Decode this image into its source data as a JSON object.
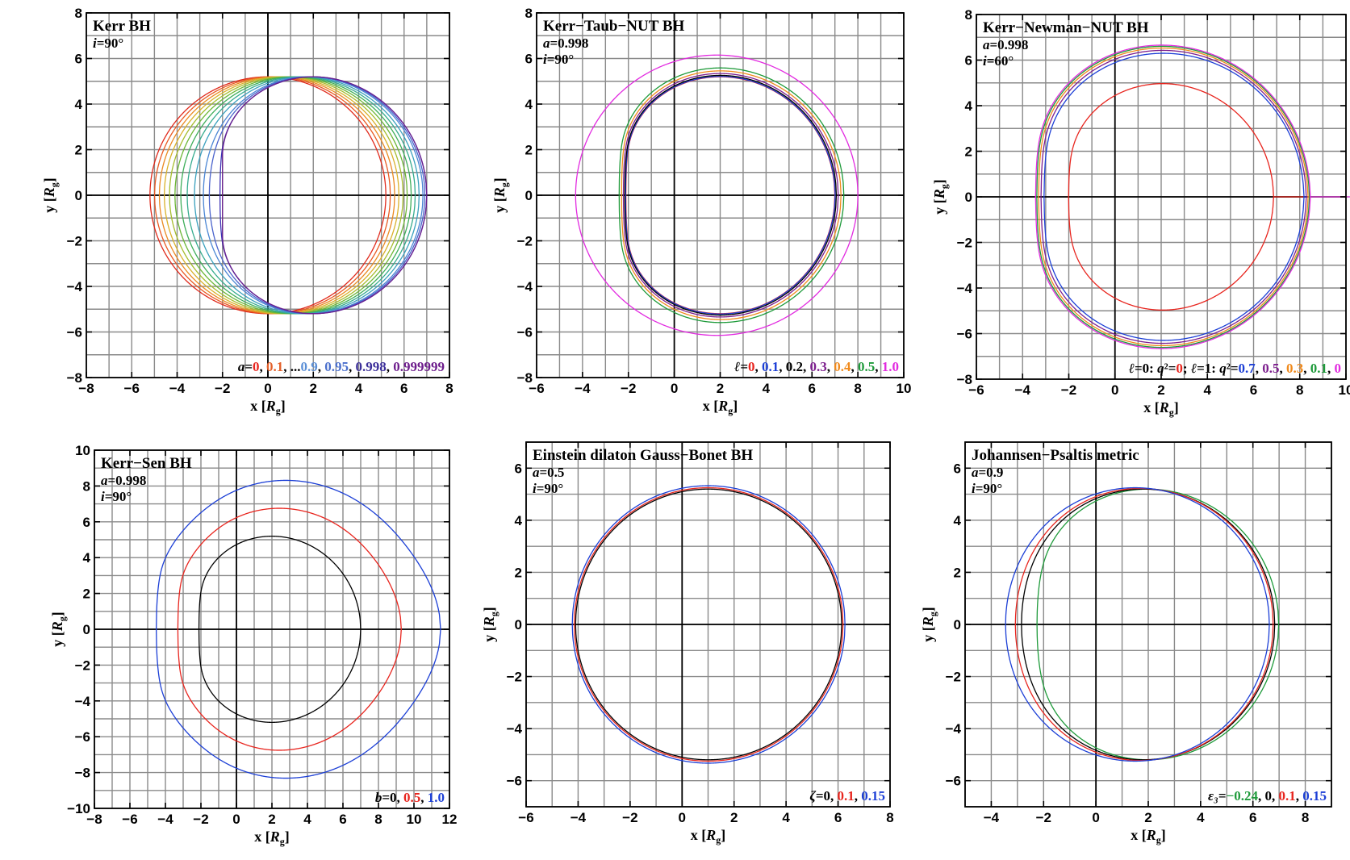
{
  "figure": {
    "axis_label_x_parts": [
      "x [",
      "R",
      "g",
      "]"
    ],
    "axis_label_y_parts": [
      "y [",
      "R",
      "g",
      "]"
    ]
  },
  "chart_data": [
    {
      "type": "line",
      "title": "Kerr BH",
      "info": [
        {
          "var": "i",
          "text": "=90°"
        }
      ],
      "xlim": [
        -8,
        8
      ],
      "ylim": [
        -8,
        8
      ],
      "x_ticks": [
        -8,
        -6,
        -4,
        -2,
        0,
        2,
        4,
        6,
        8
      ],
      "y_ticks": [
        -8,
        -6,
        -4,
        -2,
        0,
        2,
        4,
        6,
        8
      ],
      "x_tick_labels": [
        "−8",
        "−6",
        "−4",
        "−2",
        "0",
        "2",
        "4",
        "6",
        "8"
      ],
      "y_tick_labels": [
        "−8",
        "−6",
        "−4",
        "−2",
        "0",
        "2",
        "4",
        "6",
        "8"
      ],
      "grid": true,
      "legend_location": "bottom-right",
      "legend": {
        "prefix_var": "a",
        "prefix_eq": "=",
        "items": [
          {
            "text": "0",
            "color": "#e8251e"
          },
          {
            "text": ", ",
            "color": "#000000"
          },
          {
            "text": "0.1",
            "color": "#e3602a"
          },
          {
            "text": ", ...",
            "color": "#000000"
          },
          {
            "text": "0.9",
            "color": "#5b8fd6"
          },
          {
            "text": ", ",
            "color": "#000000"
          },
          {
            "text": "0.95",
            "color": "#4a6fcc"
          },
          {
            "text": ", ",
            "color": "#000000"
          },
          {
            "text": "0.998",
            "color": "#3c2f9a"
          },
          {
            "text": ", ",
            "color": "#000000"
          },
          {
            "text": "0.999999",
            "color": "#6d1d8c"
          }
        ]
      },
      "series": [
        {
          "kind": "shadow",
          "a": 0.0,
          "color": "#e02a1c"
        },
        {
          "kind": "shadow",
          "a": 0.1,
          "color": "#e95a22"
        },
        {
          "kind": "shadow",
          "a": 0.2,
          "color": "#ea8a22"
        },
        {
          "kind": "shadow",
          "a": 0.3,
          "color": "#d9b12b"
        },
        {
          "kind": "shadow",
          "a": 0.4,
          "color": "#a6bc2e"
        },
        {
          "kind": "shadow",
          "a": 0.5,
          "color": "#6cb636"
        },
        {
          "kind": "shadow",
          "a": 0.6,
          "color": "#3fae5a"
        },
        {
          "kind": "shadow",
          "a": 0.7,
          "color": "#36ab8e"
        },
        {
          "kind": "shadow",
          "a": 0.8,
          "color": "#3aa0bd"
        },
        {
          "kind": "shadow",
          "a": 0.9,
          "color": "#4b86d4"
        },
        {
          "kind": "shadow",
          "a": 0.95,
          "color": "#4a63cc"
        },
        {
          "kind": "shadow",
          "a": 0.998,
          "color": "#3a2fb4"
        },
        {
          "kind": "shadow",
          "a": 0.999999,
          "color": "#6a1f8e"
        }
      ]
    },
    {
      "type": "line",
      "title": "Kerr−Taub−NUT BH",
      "info": [
        {
          "var": "a",
          "text": "=0.998"
        },
        {
          "var": "i",
          "text": "=90°"
        }
      ],
      "xlim": [
        -6,
        10
      ],
      "ylim": [
        -8,
        8
      ],
      "x_ticks": [
        -6,
        -4,
        -2,
        0,
        2,
        4,
        6,
        8,
        10
      ],
      "y_ticks": [
        -8,
        -6,
        -4,
        -2,
        0,
        2,
        4,
        6,
        8
      ],
      "x_tick_labels": [
        "−6",
        "−4",
        "−2",
        "0",
        "2",
        "4",
        "6",
        "8",
        "10"
      ],
      "y_tick_labels": [
        "−8",
        "−6",
        "−4",
        "−2",
        "0",
        "2",
        "4",
        "6",
        "8"
      ],
      "grid": true,
      "legend_location": "bottom-right",
      "legend": {
        "prefix_var": "ℓ",
        "prefix_eq": "=",
        "items": [
          {
            "text": "0",
            "color": "#e8251e"
          },
          {
            "text": ", ",
            "color": "#000000"
          },
          {
            "text": "0.1",
            "color": "#1c3fd6"
          },
          {
            "text": ", ",
            "color": "#000000"
          },
          {
            "text": "0.2",
            "color": "#000000"
          },
          {
            "text": ", ",
            "color": "#000000"
          },
          {
            "text": "0.3",
            "color": "#7d1f8e"
          },
          {
            "text": ", ",
            "color": "#000000"
          },
          {
            "text": "0.4",
            "color": "#f08a1c"
          },
          {
            "text": ", ",
            "color": "#000000"
          },
          {
            "text": "0.5",
            "color": "#1e9a3a"
          },
          {
            "text": ", ",
            "color": "#000000"
          },
          {
            "text": "1.0",
            "color": "#e22be0"
          }
        ]
      },
      "series": [
        {
          "kind": "shadow",
          "a": 0.998,
          "color": "#e8251e",
          "scale": 1.0,
          "dx": 0.0
        },
        {
          "kind": "shadow",
          "a": 0.998,
          "color": "#1c3fd6",
          "scale": 1.003,
          "dx": 0.0
        },
        {
          "kind": "shadow",
          "a": 0.998,
          "color": "#000000",
          "scale": 1.012,
          "dx": 0.01
        },
        {
          "kind": "shadow",
          "a": 0.998,
          "color": "#7d1f8e",
          "scale": 1.028,
          "dx": 0.02
        },
        {
          "kind": "shadow",
          "a": 0.998,
          "color": "#f08a1c",
          "scale": 1.05,
          "dx": 0.04
        },
        {
          "kind": "shadow",
          "a": 0.998,
          "color": "#1e9a3a",
          "scale": 1.075,
          "dx": 0.05
        },
        {
          "kind": "ellipse",
          "cx": 1.85,
          "cy": 0.0,
          "r": 6.15,
          "color": "#e22be0"
        }
      ]
    },
    {
      "type": "line",
      "title": "Kerr−Newman−NUT BH",
      "info": [
        {
          "var": "a",
          "text": "=0.998"
        },
        {
          "var": "i",
          "text": "=60°"
        }
      ],
      "xlim": [
        -6,
        10
      ],
      "ylim": [
        -8,
        8
      ],
      "x_ticks": [
        -6,
        -4,
        -2,
        0,
        2,
        4,
        6,
        8,
        10
      ],
      "y_ticks": [
        -8,
        -6,
        -4,
        -2,
        0,
        2,
        4,
        6,
        8
      ],
      "x_tick_labels": [
        "−6",
        "−4",
        "−2",
        "0",
        "2",
        "4",
        "6",
        "8",
        "10"
      ],
      "y_tick_labels": [
        "−8",
        "−6",
        "−4",
        "−2",
        "0",
        "2",
        "4",
        "6",
        "8"
      ],
      "grid": true,
      "legend_location": "bottom-right",
      "legend": {
        "prefix_var": "",
        "prefix_eq": "",
        "items": [
          {
            "text": "ℓ",
            "color": "#000000",
            "italic": true
          },
          {
            "text": "=0:  ",
            "color": "#000000"
          },
          {
            "text": "q",
            "color": "#000000",
            "italic": true
          },
          {
            "text": "²",
            "color": "#000000"
          },
          {
            "text": "=",
            "color": "#000000"
          },
          {
            "text": "0",
            "color": "#e8251e"
          },
          {
            "text": ";    ",
            "color": "#000000"
          },
          {
            "text": "ℓ",
            "color": "#000000",
            "italic": true
          },
          {
            "text": "=1:  ",
            "color": "#000000"
          },
          {
            "text": "q",
            "color": "#000000",
            "italic": true
          },
          {
            "text": "²",
            "color": "#000000"
          },
          {
            "text": "=",
            "color": "#000000"
          },
          {
            "text": "0.7",
            "color": "#1c3fd6"
          },
          {
            "text": ", ",
            "color": "#000000"
          },
          {
            "text": "0.5",
            "color": "#7d1f8e"
          },
          {
            "text": ", ",
            "color": "#000000"
          },
          {
            "text": "0.3",
            "color": "#f08a1c"
          },
          {
            "text": ", ",
            "color": "#000000"
          },
          {
            "text": "0.1",
            "color": "#1e9a3a"
          },
          {
            "text": ", ",
            "color": "#000000"
          },
          {
            "text": "0",
            "color": "#e22be0"
          }
        ]
      },
      "series": [
        {
          "kind": "shadow",
          "a": 0.998,
          "incl": 60,
          "color": "#e8251e",
          "scale": 0.97,
          "dx": 0.25
        },
        {
          "kind": "shadow",
          "a": 0.998,
          "incl": 60,
          "color": "#1c3fd6",
          "scale": 1.23,
          "dx": 0.55
        },
        {
          "kind": "shadow",
          "a": 0.998,
          "incl": 60,
          "color": "#7d1f8e",
          "scale": 1.255,
          "dx": 0.55
        },
        {
          "kind": "shadow",
          "a": 0.998,
          "incl": 60,
          "color": "#f08a1c",
          "scale": 1.275,
          "dx": 0.55
        },
        {
          "kind": "shadow",
          "a": 0.998,
          "incl": 60,
          "color": "#1e9a3a",
          "scale": 1.29,
          "dx": 0.55
        },
        {
          "kind": "shadow",
          "a": 0.998,
          "incl": 60,
          "color": "#e22be0",
          "scale": 1.3,
          "dx": 0.55
        }
      ]
    },
    {
      "type": "line",
      "title": "Kerr−Sen BH",
      "info": [
        {
          "var": "a",
          "text": "=0.998"
        },
        {
          "var": "i",
          "text": "=90°"
        }
      ],
      "xlim": [
        -8,
        12
      ],
      "ylim": [
        -10,
        10
      ],
      "x_ticks": [
        -8,
        -6,
        -4,
        -2,
        0,
        2,
        4,
        6,
        8,
        10,
        12
      ],
      "y_ticks": [
        -10,
        -8,
        -6,
        -4,
        -2,
        0,
        2,
        4,
        6,
        8,
        10
      ],
      "x_tick_labels": [
        "−8",
        "−6",
        "−4",
        "−2",
        "0",
        "2",
        "4",
        "6",
        "8",
        "10",
        "12"
      ],
      "y_tick_labels": [
        "−10",
        "−8",
        "−6",
        "−4",
        "−2",
        "0",
        "2",
        "4",
        "6",
        "8",
        "10"
      ],
      "grid": true,
      "legend_location": "bottom-right",
      "legend": {
        "prefix_var": "b",
        "prefix_eq": "=",
        "items": [
          {
            "text": "0",
            "color": "#000000"
          },
          {
            "text": ", ",
            "color": "#000000"
          },
          {
            "text": "0.5",
            "color": "#e8251e"
          },
          {
            "text": ", ",
            "color": "#000000"
          },
          {
            "text": "1.0",
            "color": "#1c3fd6"
          }
        ]
      },
      "series": [
        {
          "kind": "shadow",
          "a": 0.998,
          "color": "#000000",
          "scale": 1.0,
          "dx": 0.0
        },
        {
          "kind": "shadow",
          "a": 0.998,
          "color": "#e8251e",
          "scale": 1.3,
          "dx": 0.55,
          "flat": 0.35
        },
        {
          "kind": "shadow",
          "a": 0.998,
          "color": "#1c3fd6",
          "scale": 1.6,
          "dx": 1.05,
          "flat": 0.55
        }
      ]
    },
    {
      "type": "line",
      "title": "Einstein dilaton Gauss−Bonet BH",
      "info": [
        {
          "var": "a",
          "text": "=0.5"
        },
        {
          "var": "i",
          "text": "=90°"
        }
      ],
      "xlim": [
        -6,
        8
      ],
      "ylim": [
        -7,
        7
      ],
      "x_ticks": [
        -6,
        -4,
        -2,
        0,
        2,
        4,
        6,
        8
      ],
      "y_ticks": [
        -6,
        -4,
        -2,
        0,
        2,
        4,
        6
      ],
      "x_tick_labels": [
        "−6",
        "−4",
        "−2",
        "0",
        "2",
        "4",
        "6",
        "8"
      ],
      "y_tick_labels": [
        "−6",
        "−4",
        "−2",
        "0",
        "2",
        "4",
        "6"
      ],
      "grid": true,
      "legend_location": "bottom-right",
      "legend": {
        "prefix_var": "ζ",
        "prefix_eq": "=",
        "items": [
          {
            "text": "0",
            "color": "#000000"
          },
          {
            "text": ", ",
            "color": "#000000"
          },
          {
            "text": "0.1",
            "color": "#e8251e"
          },
          {
            "text": ", ",
            "color": "#000000"
          },
          {
            "text": "0.15",
            "color": "#1c3fd6"
          }
        ]
      },
      "series": [
        {
          "kind": "shadow",
          "a": 0.5,
          "color": "#1c3fd6",
          "scale": 1.025,
          "dx": 0.0
        },
        {
          "kind": "shadow",
          "a": 0.5,
          "color": "#e8251e",
          "scale": 1.01,
          "dx": 0.0
        },
        {
          "kind": "shadow",
          "a": 0.5,
          "color": "#000000",
          "scale": 1.0,
          "dx": 0.0
        }
      ]
    },
    {
      "type": "line",
      "title": "Johannsen−Psaltis metric",
      "info": [
        {
          "var": "a",
          "text": "=0.9"
        },
        {
          "var": "i",
          "text": "=90°"
        }
      ],
      "xlim": [
        -5,
        9
      ],
      "ylim": [
        -7,
        7
      ],
      "x_ticks": [
        -4,
        -2,
        0,
        2,
        4,
        6,
        8
      ],
      "y_ticks": [
        -6,
        -4,
        -2,
        0,
        2,
        4,
        6
      ],
      "x_tick_labels": [
        "−4",
        "−2",
        "0",
        "2",
        "4",
        "6",
        "8"
      ],
      "y_tick_labels": [
        "−6",
        "−4",
        "−2",
        "0",
        "2",
        "4",
        "6"
      ],
      "grid": true,
      "legend_location": "bottom-right",
      "legend": {
        "prefix_var": "ε₃",
        "prefix_eq": "=",
        "items": [
          {
            "text": "−0.24",
            "color": "#1e9a3a"
          },
          {
            "text": ", ",
            "color": "#000000"
          },
          {
            "text": "0",
            "color": "#000000"
          },
          {
            "text": ", ",
            "color": "#000000"
          },
          {
            "text": "0.1",
            "color": "#e8251e"
          },
          {
            "text": ", ",
            "color": "#000000"
          },
          {
            "text": "0.15",
            "color": "#1c3fd6"
          }
        ]
      },
      "series": [
        {
          "kind": "shadow",
          "a": 0.99,
          "color": "#1e9a3a",
          "scale": 1.0,
          "dx": 0.0
        },
        {
          "kind": "shadow",
          "a": 0.9,
          "color": "#000000",
          "scale": 1.0,
          "dx": 0.0
        },
        {
          "kind": "shadow",
          "a": 0.85,
          "color": "#e8251e",
          "scale": 1.005,
          "dx": 0.0
        },
        {
          "kind": "shadow",
          "a": 0.75,
          "color": "#1c3fd6",
          "scale": 1.01,
          "dx": 0.0
        }
      ]
    }
  ]
}
